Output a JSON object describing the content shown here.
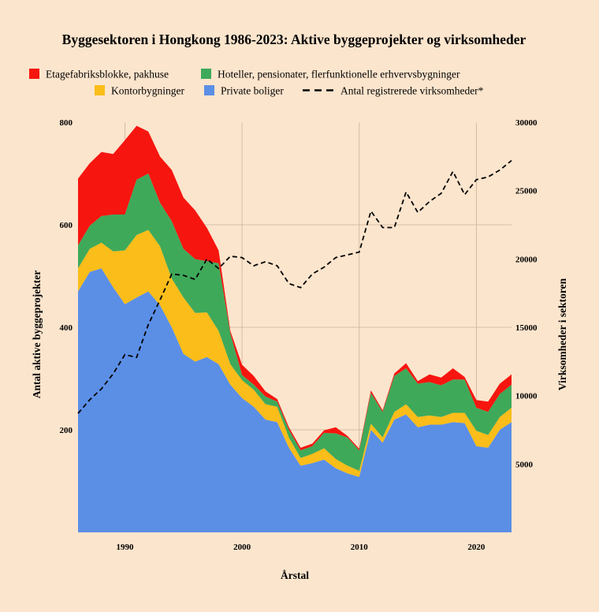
{
  "chart_data": {
    "type": "area",
    "title": "Byggesektoren i Hongkong 1986-2023: Aktive byggeprojekter og virksomheder",
    "xlabel": "Årstal",
    "ylabel": "Antal aktive byggeprojekter",
    "y2label": "Virksomheder i sektoren",
    "xlim": [
      1986,
      2023
    ],
    "ylim": [
      0,
      800
    ],
    "y2lim": [
      0,
      30000
    ],
    "xticks": [
      1990,
      2000,
      2010,
      2020
    ],
    "yticks": [
      200,
      400,
      600,
      800
    ],
    "y2ticks": [
      5000,
      10000,
      15000,
      20000,
      25000,
      30000
    ],
    "stacked": true,
    "grid": true,
    "legend_position": "top",
    "x": [
      1986,
      1987,
      1988,
      1989,
      1990,
      1991,
      1992,
      1993,
      1994,
      1995,
      1996,
      1997,
      1998,
      1999,
      2000,
      2001,
      2002,
      2003,
      2004,
      2005,
      2006,
      2007,
      2008,
      2009,
      2010,
      2011,
      2012,
      2013,
      2014,
      2015,
      2016,
      2017,
      2018,
      2019,
      2020,
      2021,
      2022,
      2023
    ],
    "series": [
      {
        "name": "Private boliger",
        "color": "#5b8fe6",
        "values": [
          470,
          508,
          515,
          478,
          445,
          458,
          470,
          443,
          400,
          348,
          333,
          342,
          328,
          288,
          262,
          245,
          220,
          215,
          165,
          130,
          135,
          142,
          125,
          115,
          108,
          200,
          175,
          220,
          230,
          205,
          210,
          210,
          215,
          213,
          168,
          165,
          200,
          215
        ]
      },
      {
        "name": "Kontorbygninger",
        "color": "#fbbd19",
        "values": [
          45,
          45,
          50,
          70,
          105,
          122,
          120,
          115,
          95,
          110,
          95,
          87,
          65,
          40,
          35,
          33,
          30,
          30,
          20,
          15,
          18,
          22,
          18,
          15,
          12,
          12,
          10,
          15,
          20,
          20,
          18,
          15,
          18,
          20,
          30,
          25,
          25,
          28
        ]
      },
      {
        "name": "Hoteller, pensionater, flerfunktionelle erhvervsbygninger",
        "color": "#3fa95a",
        "values": [
          45,
          45,
          52,
          72,
          70,
          108,
          110,
          85,
          112,
          95,
          105,
          100,
          132,
          60,
          10,
          10,
          15,
          10,
          15,
          15,
          15,
          30,
          50,
          55,
          40,
          60,
          50,
          70,
          70,
          65,
          65,
          62,
          65,
          65,
          45,
          45,
          45,
          45
        ]
      },
      {
        "name": "Etagefabriksblokke, pakhuse",
        "color": "#f7150f",
        "values": [
          130,
          122,
          125,
          118,
          145,
          105,
          82,
          90,
          100,
          100,
          95,
          65,
          25,
          5,
          20,
          17,
          10,
          5,
          5,
          5,
          5,
          5,
          12,
          3,
          3,
          5,
          3,
          5,
          10,
          5,
          15,
          15,
          22,
          5,
          15,
          20,
          20,
          20
        ]
      }
    ],
    "line": {
      "name": "Antal registrerede virksomheder*",
      "axis": "y2",
      "style": "dashed",
      "color": "#000000",
      "values": [
        8700,
        9700,
        10500,
        11600,
        13000,
        12800,
        15200,
        17000,
        18900,
        18800,
        18500,
        20000,
        19300,
        20200,
        20100,
        19500,
        19800,
        19500,
        18200,
        17900,
        18900,
        19400,
        20100,
        20300,
        20500,
        23500,
        22300,
        22300,
        24900,
        23400,
        24200,
        24800,
        26400,
        24700,
        25800,
        26000,
        26500,
        27200
      ]
    }
  }
}
